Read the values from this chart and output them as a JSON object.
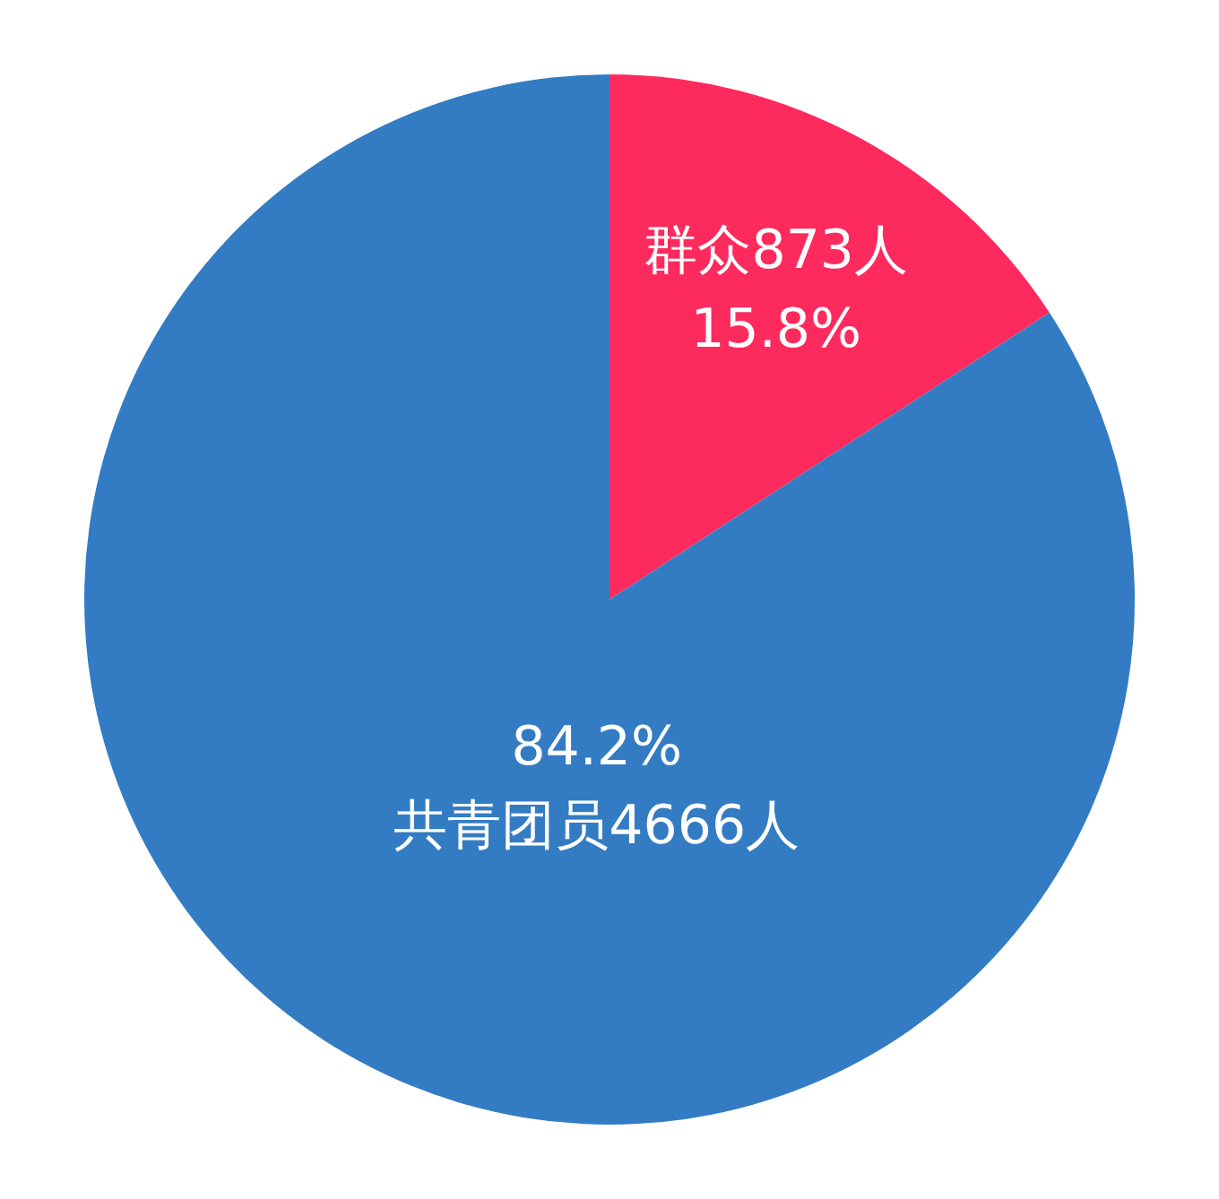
{
  "chart_data": {
    "type": "pie",
    "categories": [
      "群众873人",
      "共青团员4666人"
    ],
    "values": [
      15.8,
      84.2
    ],
    "colors": [
      "#fd2a5d",
      "#337cc3"
    ],
    "value_labels": [
      "15.8%",
      "84.2%"
    ],
    "legend": false
  }
}
